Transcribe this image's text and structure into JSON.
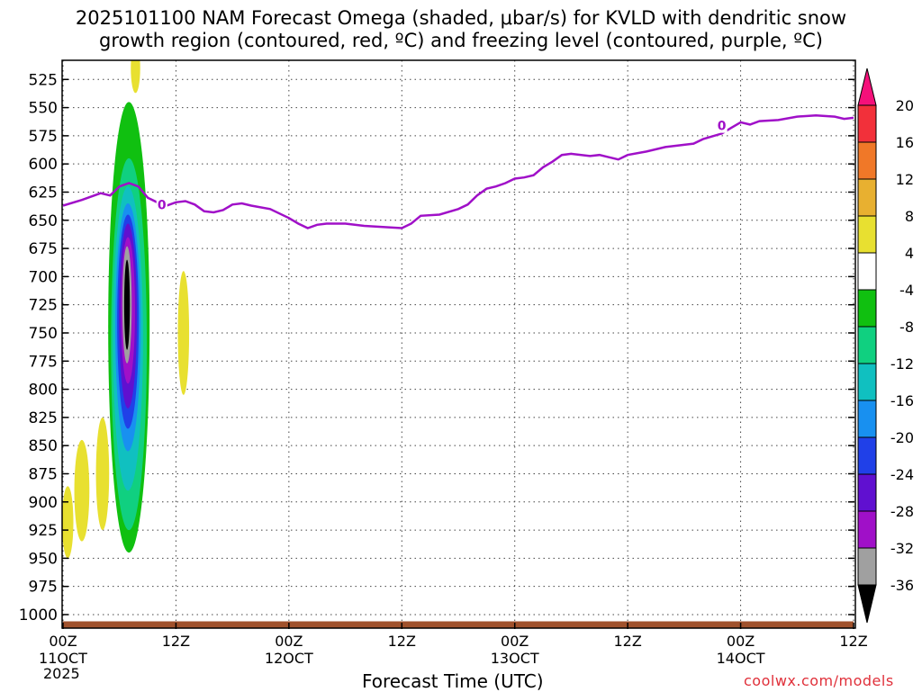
{
  "chart_data": {
    "type": "heatmap",
    "title_line1": "2025101100 NAM Forecast Omega (shaded, μbar/s) for KVLD with dendritic snow",
    "title_line2": "growth region (contoured, red, ºC) and freezing level (contoured, purple, ºC)",
    "xlabel": "Forecast Time (UTC)",
    "year_label": "2025",
    "credit": "coolwx.com/models",
    "x_unit": "forecast hour",
    "xlim": [
      0,
      84
    ],
    "x_ticks": [
      {
        "hour": 0,
        "label": "00Z",
        "date": "11OCT"
      },
      {
        "hour": 12,
        "label": "12Z",
        "date": ""
      },
      {
        "hour": 24,
        "label": "00Z",
        "date": "12OCT"
      },
      {
        "hour": 36,
        "label": "12Z",
        "date": ""
      },
      {
        "hour": 48,
        "label": "00Z",
        "date": "13OCT"
      },
      {
        "hour": 60,
        "label": "12Z",
        "date": ""
      },
      {
        "hour": 72,
        "label": "00Z",
        "date": "14OCT"
      },
      {
        "hour": 84,
        "label": "12Z",
        "date": ""
      }
    ],
    "y_unit": "pressure (mb)",
    "y_ticks": [
      525,
      550,
      575,
      600,
      625,
      650,
      675,
      700,
      725,
      750,
      775,
      800,
      825,
      850,
      875,
      900,
      925,
      950,
      975,
      1000
    ],
    "ylim": [
      508,
      1012
    ],
    "grid": true,
    "colorbar": {
      "labels": [
        "20",
        "16",
        "12",
        "8",
        "4",
        "-4",
        "-8",
        "-12",
        "-16",
        "-20",
        "-24",
        "-28",
        "-32",
        "-36"
      ],
      "colors": [
        "#f5107a",
        "#f2303a",
        "#f07828",
        "#e8b030",
        "#e8e030",
        "#ffffff",
        "#10c010",
        "#10d080",
        "#10c0c0",
        "#1890f0",
        "#2040e8",
        "#6010d0",
        "#a010c8",
        "#a0a0a0",
        "#000000"
      ]
    },
    "omega_regions": [
      {
        "color": "#e8e030",
        "level": 4,
        "center": [
          7.7,
          515
        ],
        "half_width": 0.5,
        "half_height": 22
      },
      {
        "color": "#10c010",
        "level": -4,
        "center": [
          7.0,
          745
        ],
        "half_width": 2.2,
        "half_height": 200
      },
      {
        "color": "#10d080",
        "level": -8,
        "center": [
          7.0,
          760
        ],
        "half_width": 1.9,
        "half_height": 165
      },
      {
        "color": "#10c0c0",
        "level": -12,
        "center": [
          6.9,
          755
        ],
        "half_width": 1.6,
        "half_height": 135
      },
      {
        "color": "#1890f0",
        "level": -16,
        "center": [
          6.9,
          745
        ],
        "half_width": 1.35,
        "half_height": 110
      },
      {
        "color": "#2040e8",
        "level": -20,
        "center": [
          6.9,
          740
        ],
        "half_width": 1.15,
        "half_height": 95
      },
      {
        "color": "#6010d0",
        "level": -24,
        "center": [
          6.9,
          735
        ],
        "half_width": 0.95,
        "half_height": 82
      },
      {
        "color": "#a010c8",
        "level": -28,
        "center": [
          6.9,
          730
        ],
        "half_width": 0.75,
        "half_height": 65
      },
      {
        "color": "#a0a0a0",
        "level": -32,
        "center": [
          6.8,
          725
        ],
        "half_width": 0.5,
        "half_height": 52
      },
      {
        "color": "#000000",
        "level": -36,
        "center": [
          6.8,
          725
        ],
        "half_width": 0.3,
        "half_height": 40
      },
      {
        "color": "#e8e030",
        "level": 4,
        "center": [
          12.8,
          750
        ],
        "half_width": 0.6,
        "half_height": 55
      },
      {
        "color": "#e8e030",
        "level": 4,
        "center": [
          0.5,
          918
        ],
        "half_width": 0.6,
        "half_height": 32
      },
      {
        "color": "#e8e030",
        "level": 4,
        "center": [
          2.0,
          890
        ],
        "half_width": 0.8,
        "half_height": 45
      },
      {
        "color": "#e8e030",
        "level": 4,
        "center": [
          4.2,
          875
        ],
        "half_width": 0.7,
        "half_height": 50
      }
    ],
    "freezing_level": {
      "label": "0",
      "color": "#a010c8",
      "points": [
        [
          0,
          637
        ],
        [
          2,
          632
        ],
        [
          4,
          626
        ],
        [
          5,
          628
        ],
        [
          6,
          620
        ],
        [
          7,
          617
        ],
        [
          8,
          620
        ],
        [
          9,
          630
        ],
        [
          10,
          634
        ],
        [
          11,
          637
        ],
        [
          12,
          634
        ],
        [
          13,
          633
        ],
        [
          14,
          636
        ],
        [
          15,
          642
        ],
        [
          16,
          643
        ],
        [
          17,
          641
        ],
        [
          18,
          636
        ],
        [
          19,
          635
        ],
        [
          20,
          637
        ],
        [
          22,
          640
        ],
        [
          24,
          648
        ],
        [
          25,
          653
        ],
        [
          26,
          657
        ],
        [
          27,
          654
        ],
        [
          28,
          653
        ],
        [
          30,
          653
        ],
        [
          32,
          655
        ],
        [
          34,
          656
        ],
        [
          36,
          657
        ],
        [
          37,
          653
        ],
        [
          38,
          646
        ],
        [
          40,
          645
        ],
        [
          42,
          640
        ],
        [
          43,
          636
        ],
        [
          44,
          628
        ],
        [
          45,
          622
        ],
        [
          46,
          620
        ],
        [
          47,
          617
        ],
        [
          48,
          613
        ],
        [
          49,
          612
        ],
        [
          50,
          610
        ],
        [
          51,
          603
        ],
        [
          52,
          598
        ],
        [
          53,
          592
        ],
        [
          54,
          591
        ],
        [
          56,
          593
        ],
        [
          57,
          592
        ],
        [
          58,
          594
        ],
        [
          59,
          596
        ],
        [
          60,
          592
        ],
        [
          62,
          589
        ],
        [
          64,
          585
        ],
        [
          66,
          583
        ],
        [
          67,
          582
        ],
        [
          68,
          578
        ],
        [
          70,
          573
        ],
        [
          71,
          568
        ],
        [
          72,
          563
        ],
        [
          73,
          565
        ],
        [
          74,
          562
        ],
        [
          76,
          561
        ],
        [
          78,
          558
        ],
        [
          80,
          557
        ],
        [
          82,
          558
        ],
        [
          83,
          560
        ],
        [
          84,
          559
        ]
      ],
      "label_positions": [
        [
          10.5,
          636
        ],
        [
          70,
          566
        ]
      ]
    },
    "terrain": {
      "color": "#a0522d",
      "surface_pressure": 1006
    }
  }
}
